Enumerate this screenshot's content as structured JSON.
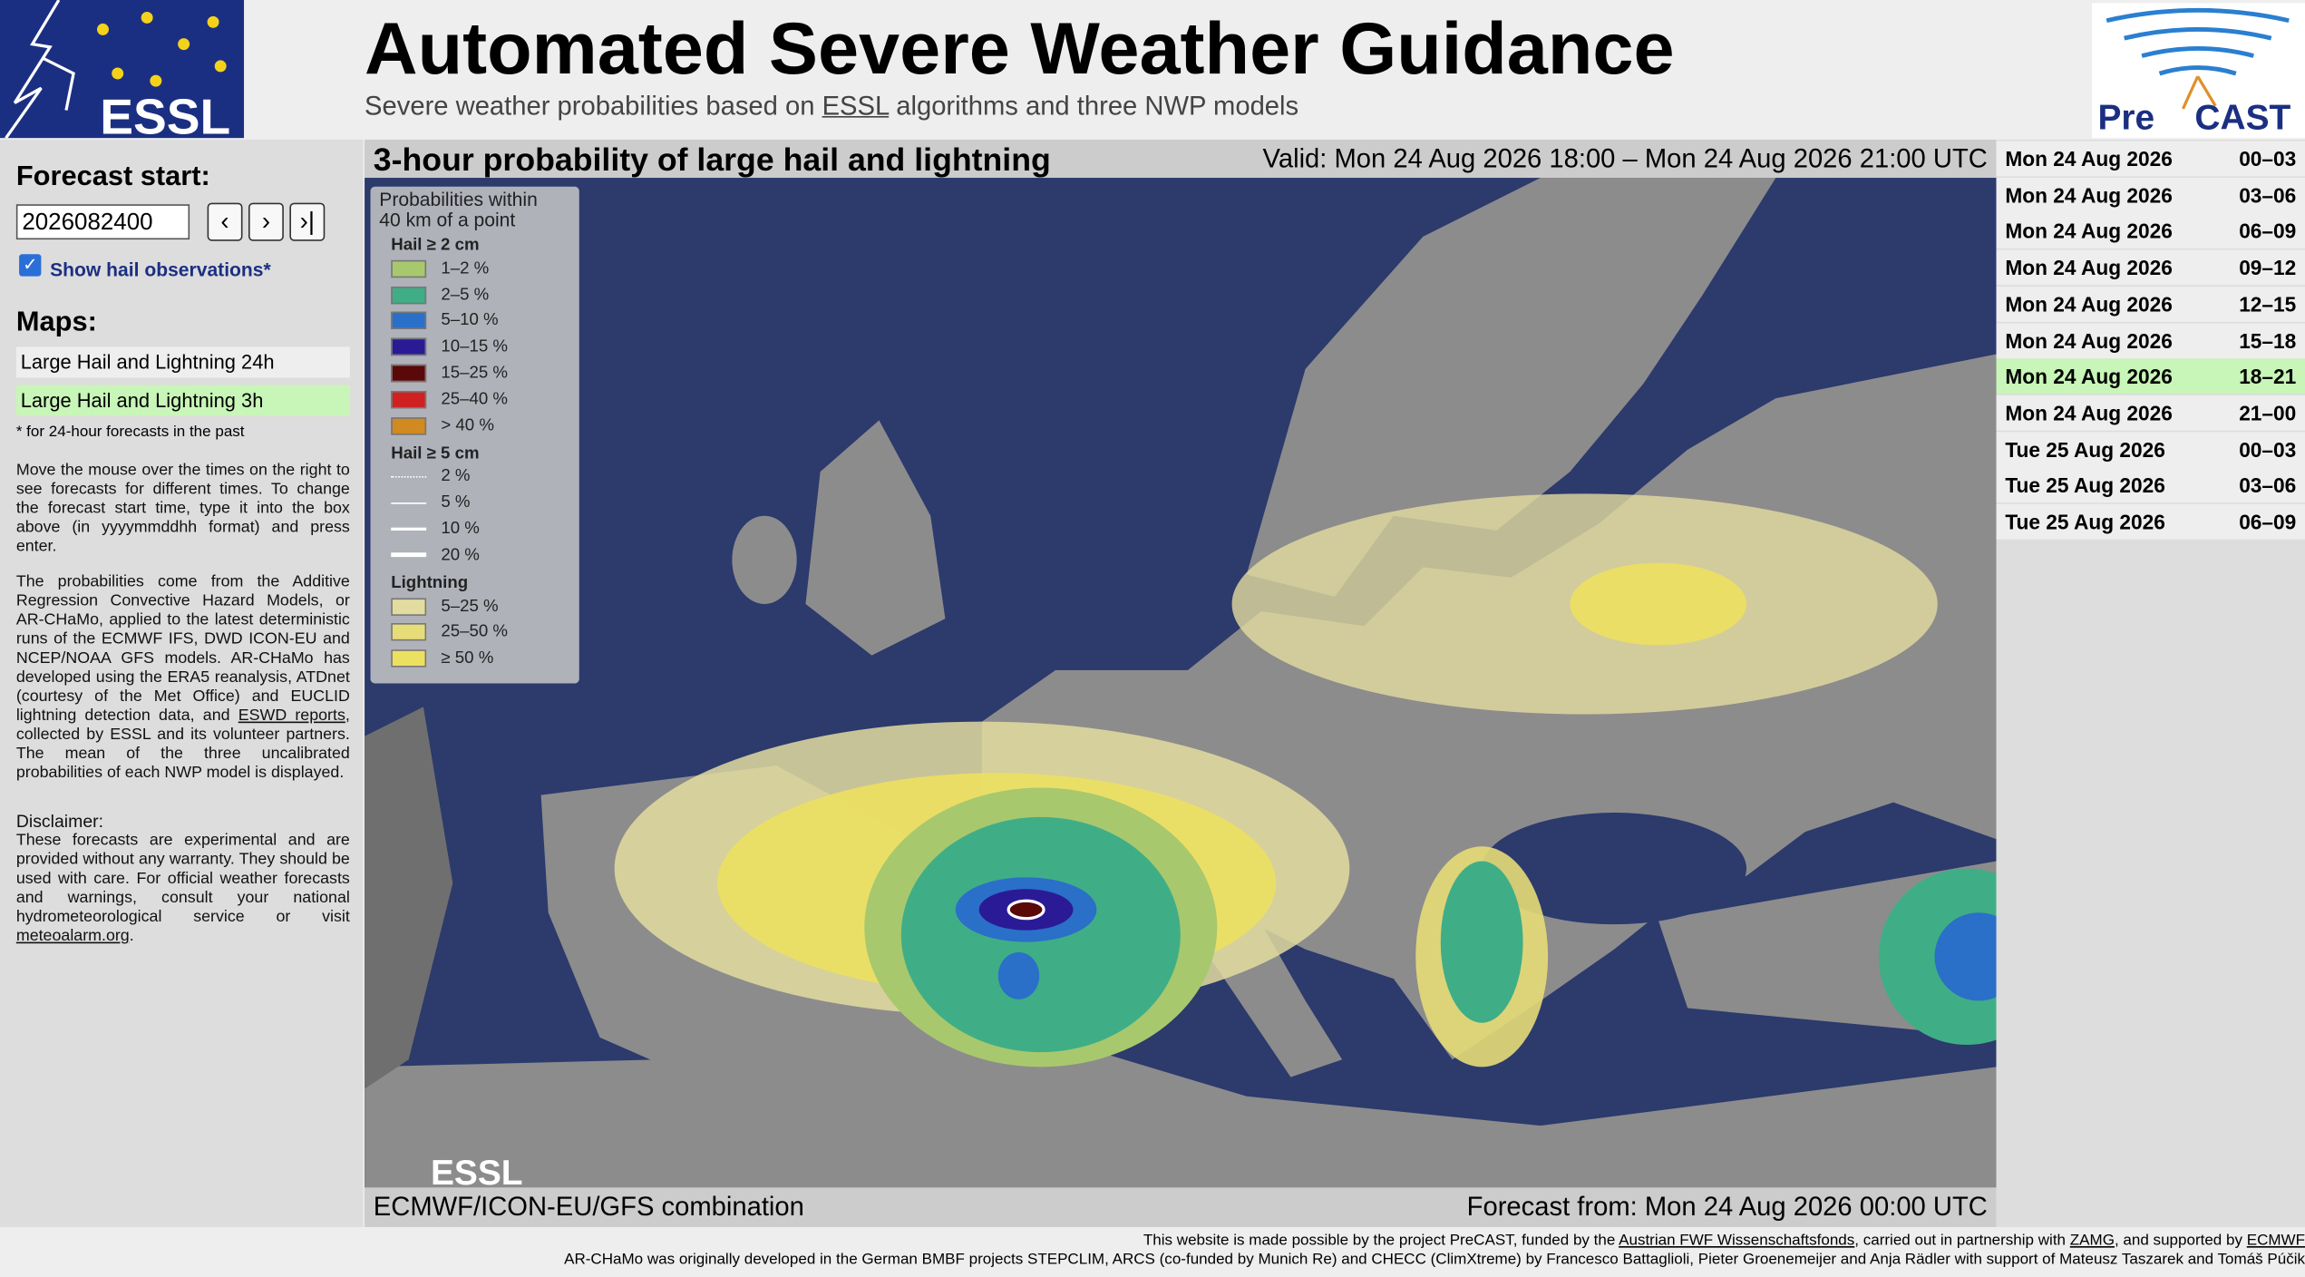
{
  "header": {
    "title": "Automated Severe Weather Guidance",
    "subtitle": [
      "Severe weather probabilities based on ",
      "ESSL",
      " algorithms and three NWP models"
    ],
    "logo_left": "ESSL",
    "logo_right": [
      "Pre",
      "CAST"
    ]
  },
  "sidebar": {
    "forecast_start_label": "Forecast start:",
    "forecast_start": "2026082400",
    "buttons": [
      "‹",
      "›",
      "›|"
    ],
    "checkbox": "Show hail observations*",
    "maps_heading": "Maps:",
    "maps": [
      "Large Hail and Lightning 24h",
      "Large Hail and Lightning 3h"
    ],
    "note": "* for 24-hour forecasts in the past",
    "help": "Move the mouse over the times on the right to see forecasts for different times. To change the forecast start time, type it into the box above (in yyyymmddhh format) and press enter.",
    "about": [
      "The probabilities come from the Additive Regression Convective Hazard Models, or AR-CHaMo, applied to the latest deterministic runs of the ECMWF IFS, DWD ICON-EU and NCEP/NOAA GFS models. AR-CHaMo has developed using the ERA5 reanalysis, ATDnet (courtesy of the Met Office) and EUCLID lightning detection data, and ",
      "ESWD reports",
      ", collected by ESSL and its volunteer partners. The mean of the three uncalibrated probabilities of each NWP model is displayed."
    ],
    "disclaimer_heading": "Disclaimer:",
    "disclaimer": [
      "These forecasts are experimental and are provided without any warranty. They should be used with care. For official weather forecasts and warnings, consult your national hydrometeorological service or visit ",
      "meteoalarm.org",
      "."
    ]
  },
  "map": {
    "title": "3-hour probability of large hail and lightning",
    "valid": "Valid: Mon 24 Aug 2026 18:00 – Mon 24 Aug 2026 21:00 UTC",
    "model": "ECMWF/ICON-EU/GFS combination",
    "forecast_from": "Forecast from: Mon 24 Aug 2026 00:00 UTC",
    "watermark": "ESSL",
    "legend": {
      "title": [
        "Probabilities within",
        "40 km of a point"
      ],
      "groups": [
        {
          "heading": "Hail ≥ 2 cm",
          "items": [
            {
              "label": "1–2 %",
              "color": "#a8c86e"
            },
            {
              "label": "2–5 %",
              "color": "#3fae86"
            },
            {
              "label": "5–10 %",
              "color": "#2a6fc8"
            },
            {
              "label": "10–15 %",
              "color": "#2a1a96"
            },
            {
              "label": "15–25 %",
              "color": "#5a0808"
            },
            {
              "label": "25–40 %",
              "color": "#d02020"
            },
            {
              "label": "> 40 %",
              "color": "#d08a20"
            }
          ]
        },
        {
          "heading": "Hail ≥ 5 cm",
          "items": [
            {
              "label": "2 %"
            },
            {
              "label": "5 %"
            },
            {
              "label": "10 %"
            },
            {
              "label": "20 %"
            }
          ]
        },
        {
          "heading": "Lightning",
          "items": [
            {
              "label": "5–25 %",
              "color": "#e3dca0"
            },
            {
              "label": "25–50 %",
              "color": "#e6dc78"
            },
            {
              "label": "≥ 50 %",
              "color": "#ece060"
            }
          ]
        }
      ]
    }
  },
  "times": [
    {
      "date": "Mon 24 Aug 2026",
      "hours": "00–03"
    },
    {
      "date": "Mon 24 Aug 2026",
      "hours": "03–06"
    },
    {
      "date": "Mon 24 Aug 2026",
      "hours": "06–09"
    },
    {
      "date": "Mon 24 Aug 2026",
      "hours": "09–12"
    },
    {
      "date": "Mon 24 Aug 2026",
      "hours": "12–15"
    },
    {
      "date": "Mon 24 Aug 2026",
      "hours": "15–18"
    },
    {
      "date": "Mon 24 Aug 2026",
      "hours": "18–21"
    },
    {
      "date": "Mon 24 Aug 2026",
      "hours": "21–00"
    },
    {
      "date": "Tue 25 Aug 2026",
      "hours": "00–03"
    },
    {
      "date": "Tue 25 Aug 2026",
      "hours": "03–06"
    },
    {
      "date": "Tue 25 Aug 2026",
      "hours": "06–09"
    }
  ],
  "selected_time": 6,
  "footer": {
    "line1": [
      "This website is made possible by the project PreCAST, funded by the ",
      "Austrian FWF Wissenschaftsfonds",
      ", carried out in partnership with ",
      "ZAMG",
      ", and supported by ",
      "ECMWF"
    ],
    "line2": "AR-CHaMo was originally developed in the German BMBF projects STEPCLIM, ARCS (co-funded by Munich Re) and CHECC (ClimXtreme) by Francesco Battaglioli, Pieter Groenemeijer and Anja Rädler with support of Mateusz Taszarek and Tomáš Púčik"
  }
}
